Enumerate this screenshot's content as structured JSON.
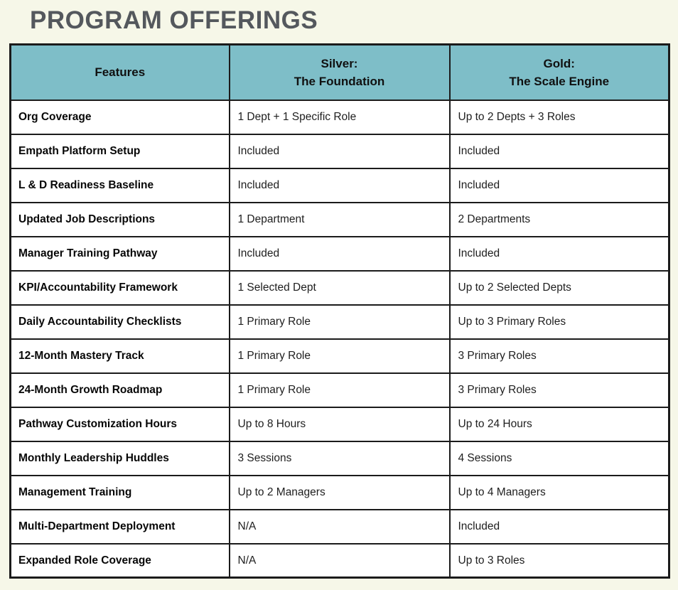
{
  "page": {
    "background_color": "#F6F7E8",
    "title_color": "#54585D"
  },
  "title": "PROGRAM OFFERINGS",
  "colors": {
    "header_background": "#7EBEC8",
    "table_border": "#1B1B1B",
    "cell_background": "#FFFFFF"
  },
  "chart_data": {
    "type": "table",
    "title": "PROGRAM OFFERINGS",
    "columns": [
      "Features",
      "Silver: The Foundation",
      "Gold: The Scale Engine"
    ],
    "header_lines": [
      [
        "Features"
      ],
      [
        "Silver:",
        "The Foundation"
      ],
      [
        "Gold:",
        "The Scale Engine"
      ]
    ],
    "rows": [
      {
        "feature": "Org Coverage",
        "silver": "1 Dept + 1 Specific Role",
        "gold": "Up to 2 Depts + 3 Roles"
      },
      {
        "feature": "Empath Platform Setup",
        "silver": "Included",
        "gold": "Included"
      },
      {
        "feature": "L & D Readiness Baseline",
        "silver": "Included",
        "gold": "Included"
      },
      {
        "feature": "Updated Job Descriptions",
        "silver": "1 Department",
        "gold": "2 Departments"
      },
      {
        "feature": "Manager Training Pathway",
        "silver": "Included",
        "gold": "Included"
      },
      {
        "feature": "KPI/Accountability Framework",
        "silver": "1 Selected Dept",
        "gold": "Up to 2 Selected Depts"
      },
      {
        "feature": "Daily Accountability Checklists",
        "silver": "1 Primary Role",
        "gold": "Up to 3 Primary Roles"
      },
      {
        "feature": "12-Month Mastery Track",
        "silver": "1 Primary Role",
        "gold": "3 Primary Roles"
      },
      {
        "feature": "24-Month Growth Roadmap",
        "silver": "1 Primary Role",
        "gold": "3 Primary Roles"
      },
      {
        "feature": "Pathway Customization Hours",
        "silver": "Up to 8 Hours",
        "gold": "Up to 24 Hours"
      },
      {
        "feature": "Monthly Leadership Huddles",
        "silver": "3 Sessions",
        "gold": "4 Sessions"
      },
      {
        "feature": "Management Training",
        "silver": "Up to 2 Managers",
        "gold": "Up to 4 Managers"
      },
      {
        "feature": "Multi-Department Deployment",
        "silver": "N/A",
        "gold": "Included"
      },
      {
        "feature": "Expanded Role Coverage",
        "silver": "N/A",
        "gold": "Up to 3 Roles"
      }
    ]
  }
}
